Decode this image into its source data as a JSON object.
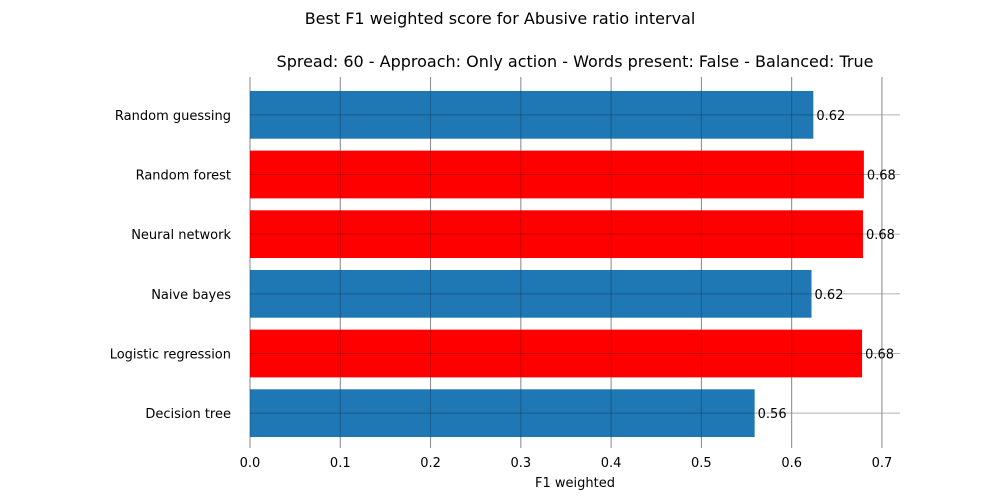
{
  "chart_data": {
    "type": "bar",
    "orientation": "horizontal",
    "suptitle": "Best F1 weighted score for Abusive ratio interval",
    "title": "Spread: 60 - Approach: Only action - Words present: False - Balanced: True",
    "xlabel": "F1 weighted",
    "ylabel": "",
    "xlim": [
      0,
      0.72
    ],
    "xticks": [
      "0.0",
      "0.1",
      "0.2",
      "0.3",
      "0.4",
      "0.5",
      "0.6",
      "0.7"
    ],
    "grid": true,
    "categories": [
      "Random guessing",
      "Random forest",
      "Neural network",
      "Naive bayes",
      "Logistic regression",
      "Decision tree"
    ],
    "values": [
      0.624,
      0.68,
      0.679,
      0.622,
      0.678,
      0.559
    ],
    "data_labels": [
      "0.62",
      "0.68",
      "0.68",
      "0.62",
      "0.68",
      "0.56"
    ],
    "colors": [
      "#1f77b4",
      "#ff0000",
      "#ff0000",
      "#1f77b4",
      "#ff0000",
      "#1f77b4"
    ],
    "palette": {
      "default": "#1f77b4",
      "best": "#ff0000",
      "grid": "#b0b0b0"
    }
  }
}
